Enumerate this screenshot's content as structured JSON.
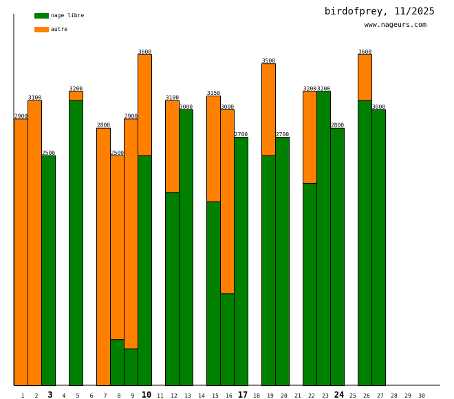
{
  "header": {
    "title": "birdofprey, 11/2025",
    "site": "www.nageurs.com"
  },
  "colors": {
    "nage_libre": "#008000",
    "autre": "#ff8000"
  },
  "chart_data": {
    "type": "bar",
    "stacked": true,
    "title": "birdofprey, 11/2025",
    "legend_position": "top-left",
    "grid": false,
    "ylim": [
      0,
      4040
    ],
    "categories": [
      "1",
      "2",
      "3",
      "4",
      "5",
      "6",
      "7",
      "8",
      "9",
      "10",
      "11",
      "12",
      "13",
      "14",
      "15",
      "16",
      "17",
      "18",
      "19",
      "20",
      "21",
      "22",
      "23",
      "24",
      "25",
      "26",
      "27",
      "28",
      "29",
      "30"
    ],
    "bold_categories": [
      "3",
      "10",
      "17",
      "24"
    ],
    "series": [
      {
        "name": "nage libre",
        "values": [
          0,
          0,
          2500,
          0,
          3100,
          0,
          0,
          500,
          400,
          2500,
          0,
          2100,
          3000,
          0,
          2000,
          1000,
          2700,
          0,
          2500,
          2700,
          0,
          2200,
          3200,
          2800,
          0,
          3100,
          3000,
          0,
          0,
          0
        ]
      },
      {
        "name": "autre",
        "values": [
          2900,
          3100,
          0,
          0,
          100,
          0,
          2800,
          2000,
          2500,
          1100,
          0,
          1000,
          0,
          0,
          1150,
          2000,
          0,
          0,
          1000,
          0,
          0,
          1000,
          0,
          0,
          0,
          500,
          0,
          0,
          0,
          0
        ]
      }
    ],
    "totals": [
      2900,
      3100,
      2500,
      0,
      3200,
      0,
      2800,
      2500,
      2900,
      3600,
      0,
      3100,
      3000,
      0,
      3150,
      3000,
      2700,
      0,
      3500,
      2700,
      0,
      3200,
      3200,
      2800,
      0,
      3600,
      3000,
      0,
      0,
      0
    ]
  }
}
